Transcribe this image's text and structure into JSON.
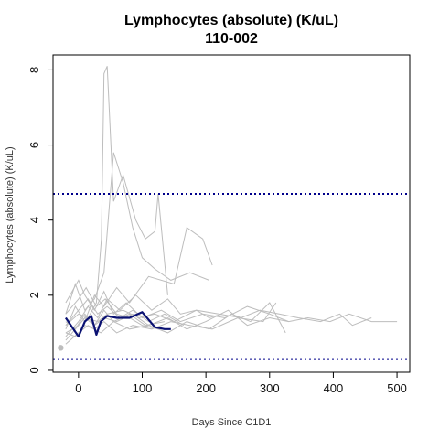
{
  "chart_data": {
    "type": "line",
    "title": "Lymphocytes (absolute) (K/uL)",
    "subtitle": "110-002",
    "xlabel": "Days Since C1D1",
    "ylabel": "Lymphocytes (absolute) (K/uL)",
    "xlim": [
      -40,
      520
    ],
    "ylim": [
      -0.05,
      8.4
    ],
    "x_ticks": [
      0,
      100,
      200,
      300,
      400,
      500
    ],
    "y_ticks": [
      0,
      2,
      4,
      6,
      8
    ],
    "x_tick_labels": [
      "0",
      "100",
      "200",
      "300",
      "400",
      "500"
    ],
    "y_tick_labels": [
      "0",
      "2",
      "4",
      "6",
      "8"
    ],
    "reference_lines": [
      {
        "y": 4.7,
        "color": "#00008B",
        "style": "dotted"
      },
      {
        "y": 0.3,
        "color": "#00008B",
        "style": "dotted"
      }
    ],
    "background_series_color": "#bdbdbd",
    "highlight_color": "#0a1172",
    "background_series": [
      {
        "x": [
          -20,
          0,
          15,
          28,
          36,
          40,
          45,
          55,
          70,
          90,
          105,
          120,
          125,
          140
        ],
        "y": [
          1.2,
          1.5,
          1.4,
          1.8,
          3.5,
          7.9,
          8.1,
          4.5,
          5.2,
          4.0,
          3.5,
          3.7,
          4.7,
          2.0
        ]
      },
      {
        "x": [
          -20,
          -5,
          10,
          25,
          40,
          55,
          70,
          85,
          100,
          120,
          145,
          175,
          205
        ],
        "y": [
          1.5,
          2.3,
          1.6,
          1.9,
          2.6,
          5.8,
          5.0,
          3.8,
          3.0,
          2.7,
          2.4,
          2.6,
          2.4
        ]
      },
      {
        "x": [
          -20,
          -5,
          10,
          25,
          40,
          60,
          80,
          110,
          150,
          170,
          195,
          210
        ],
        "y": [
          1.1,
          1.7,
          1.3,
          2.0,
          1.7,
          2.2,
          1.8,
          2.5,
          2.3,
          3.8,
          3.5,
          2.8
        ]
      },
      {
        "x": [
          -20,
          0,
          15,
          30,
          45,
          65,
          90,
          115,
          140,
          160,
          185,
          205,
          225
        ],
        "y": [
          0.9,
          1.3,
          1.7,
          1.4,
          1.9,
          1.6,
          2.0,
          1.6,
          1.9,
          1.5,
          1.6,
          1.4,
          1.5
        ]
      },
      {
        "x": [
          -20,
          0,
          10,
          30,
          45,
          70,
          95,
          120,
          150,
          185,
          220,
          255,
          285,
          315,
          345,
          380,
          410,
          430,
          460
        ],
        "y": [
          1.0,
          1.2,
          1.4,
          1.3,
          1.5,
          1.6,
          1.4,
          1.5,
          1.3,
          1.6,
          1.5,
          1.4,
          1.6,
          1.5,
          1.4,
          1.3,
          1.5,
          1.2,
          1.4
        ]
      },
      {
        "x": [
          -20,
          -5,
          10,
          25,
          40,
          60,
          85,
          110,
          140,
          170,
          200,
          235,
          265,
          300,
          330,
          360,
          395,
          425,
          460,
          500
        ],
        "y": [
          1.3,
          1.1,
          1.5,
          1.2,
          1.4,
          1.3,
          1.5,
          1.2,
          1.4,
          1.1,
          1.3,
          1.6,
          1.2,
          1.4,
          1.3,
          1.4,
          1.3,
          1.5,
          1.3,
          1.3
        ]
      },
      {
        "x": [
          -20,
          0,
          15,
          35,
          55,
          80,
          110,
          140,
          170,
          205,
          240,
          270,
          300,
          325
        ],
        "y": [
          0.7,
          1.0,
          1.2,
          1.0,
          1.3,
          1.1,
          1.2,
          1.0,
          1.3,
          1.1,
          1.5,
          1.3,
          1.8,
          1.0
        ]
      },
      {
        "x": [
          -20,
          0,
          10,
          25,
          40,
          55,
          75,
          100,
          130,
          160,
          195,
          230,
          265,
          300,
          330
        ],
        "y": [
          1.8,
          2.4,
          2.0,
          1.6,
          2.1,
          1.5,
          1.8,
          1.4,
          1.6,
          1.3,
          1.5,
          1.4,
          1.7,
          1.5,
          1.3
        ]
      },
      {
        "x": [
          -20,
          -5,
          10,
          25,
          40,
          60,
          85,
          115,
          145,
          175,
          210,
          250,
          290,
          310
        ],
        "y": [
          1.0,
          0.9,
          1.2,
          1.1,
          1.3,
          1.0,
          1.2,
          1.1,
          1.3,
          1.2,
          1.1,
          1.4,
          1.3,
          1.8
        ]
      },
      {
        "x": [
          -20,
          0,
          15,
          30,
          45,
          65,
          85,
          110,
          135,
          165
        ],
        "y": [
          1.2,
          1.6,
          1.9,
          1.5,
          1.7,
          1.4,
          1.6,
          1.3,
          1.5,
          1.2
        ]
      },
      {
        "x": [
          -20,
          -5,
          10,
          25,
          40,
          55,
          80,
          105,
          135
        ],
        "y": [
          0.8,
          1.1,
          1.4,
          1.2,
          1.6,
          1.3,
          1.5,
          1.2,
          1.3
        ]
      },
      {
        "x": [
          -20,
          0,
          12,
          28,
          42,
          60,
          80,
          100,
          125
        ],
        "y": [
          1.5,
          1.9,
          2.2,
          1.7,
          1.9,
          1.5,
          1.4,
          1.2,
          1.1
        ]
      }
    ],
    "highlight_series": {
      "name": "110-002",
      "x": [
        -20,
        0,
        10,
        20,
        28,
        35,
        45,
        60,
        80,
        100,
        120,
        135,
        145
      ],
      "y": [
        1.4,
        0.9,
        1.3,
        1.45,
        0.95,
        1.3,
        1.45,
        1.4,
        1.4,
        1.55,
        1.15,
        1.1,
        1.1
      ]
    },
    "baseline_point": {
      "x": -28,
      "y": 0.6,
      "color": "#bdbdbd"
    }
  }
}
